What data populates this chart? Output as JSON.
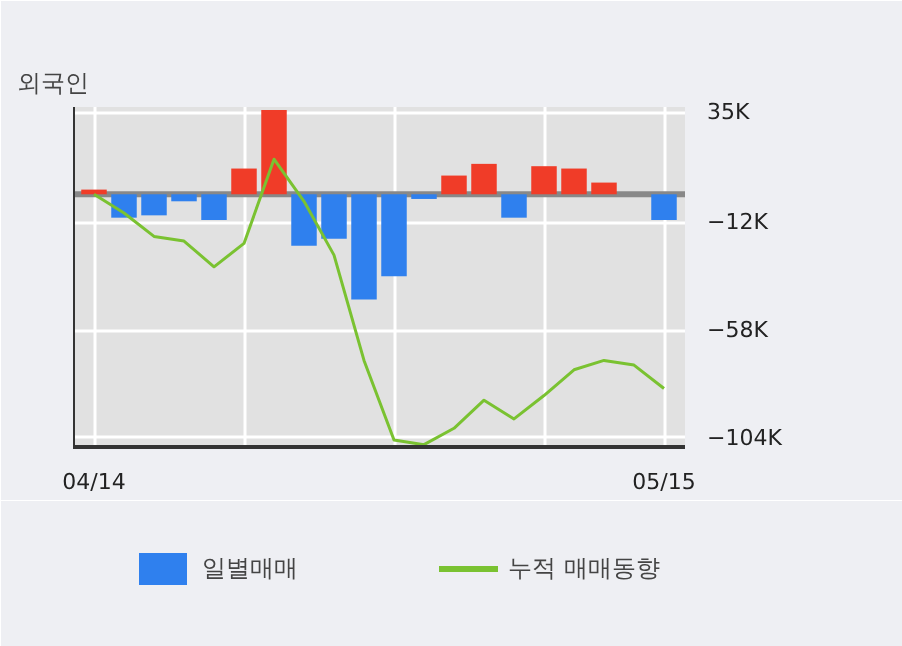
{
  "chart_data": {
    "type": "bar",
    "title": "외국인",
    "categories": [
      "04/14",
      null,
      null,
      null,
      null,
      null,
      null,
      null,
      null,
      null,
      null,
      null,
      null,
      null,
      null,
      null,
      null,
      null,
      null,
      "05/15"
    ],
    "series": [
      {
        "name": "일별매매",
        "colors": [
          "#f03c28",
          "#2f80ee",
          "#2f80ee",
          "#2f80ee",
          "#2f80ee",
          "#f03c28",
          "#f03c28",
          "#2f80ee",
          "#2f80ee",
          "#2f80ee",
          "#2f80ee",
          "#2f80ee",
          "#f03c28",
          "#f03c28",
          "#2f80ee",
          "#f03c28",
          "#f03c28",
          "#f03c28",
          "#f03c28",
          "#2f80ee"
        ],
        "values": [
          2,
          -10,
          -9,
          -3,
          -11,
          11,
          36,
          -22,
          -19,
          -45,
          -35,
          -2,
          8,
          13,
          -10,
          12,
          11,
          5,
          0,
          -11
        ]
      },
      {
        "name": "누적 매매동향",
        "type": "line",
        "color": "#7ac231",
        "values": [
          0,
          -8,
          -18,
          -20,
          -31,
          -21,
          15,
          -3,
          -26,
          -71,
          -105,
          -107,
          -100,
          -88,
          -96,
          -86,
          -75,
          -71,
          -73,
          -83
        ]
      }
    ],
    "ylim": [
      -108,
      37.3
    ],
    "yticks": [
      {
        "value": 35,
        "label": "35K"
      },
      {
        "value": -12,
        "label": "−12K"
      },
      {
        "value": -58,
        "label": "−58K"
      },
      {
        "value": -104,
        "label": "−104K"
      }
    ],
    "ref_lines": [
      {
        "axis": "y",
        "value": 0,
        "color": "#888888"
      }
    ],
    "grid": true,
    "legend": "bottom"
  }
}
